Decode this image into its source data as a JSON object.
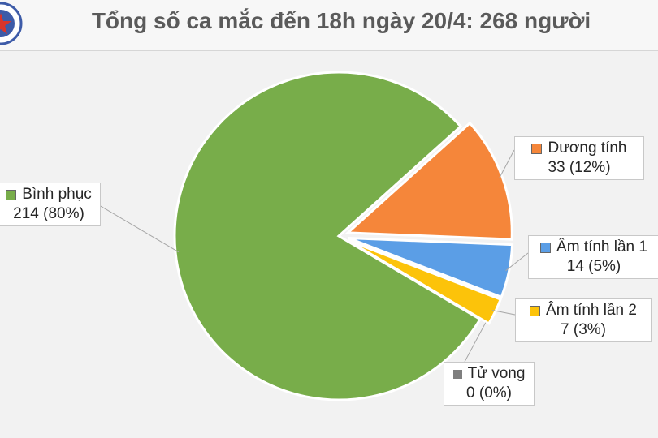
{
  "title": "Tổng số ca mắc đến 18h ngày 20/4: 268 người",
  "colors": {
    "binh_phuc": "#78ad4a",
    "duong_tinh": "#f5863a",
    "am_tinh_1": "#5b9ee6",
    "am_tinh_2": "#fcc30a",
    "tu_vong": "#7f7f7f",
    "logo": "#3d5ba8"
  },
  "logo_icon": "ministry-of-health-seal",
  "chart_data": {
    "type": "pie",
    "title": "Tổng số ca mắc đến 18h ngày 20/4: 268 người",
    "slices": [
      {
        "name": "Bình phục",
        "value": 214,
        "percent": "80%",
        "display": "214 (80%)"
      },
      {
        "name": "Dương tính",
        "value": 33,
        "percent": "12%",
        "display": "33 (12%)"
      },
      {
        "name": "Âm tính lần 1",
        "value": 14,
        "percent": "5%",
        "display": "14 (5%)"
      },
      {
        "name": "Âm tính lần 2",
        "value": 7,
        "percent": "3%",
        "display": "7 (3%)"
      },
      {
        "name": "Tử vong",
        "value": 0,
        "percent": "0%",
        "display": "0 (0%)"
      }
    ],
    "legend": "data-labels"
  }
}
